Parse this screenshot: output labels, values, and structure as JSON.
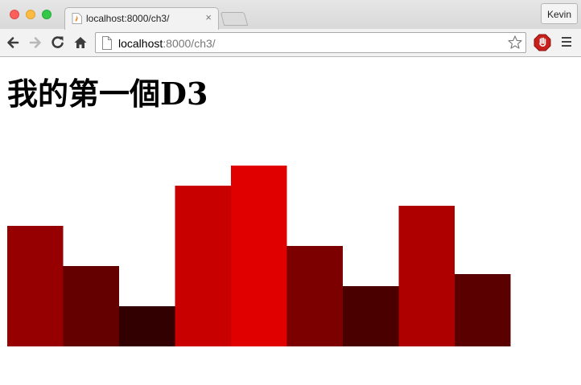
{
  "window": {
    "tab_title": "localhost:8000/ch3/",
    "tab_close_glyph": "×",
    "profile_name": "Kevin"
  },
  "toolbar": {
    "url_host": "localhost",
    "url_rest": ":8000/ch3/",
    "icons": [
      "back-icon",
      "forward-icon",
      "reload-icon",
      "home-icon",
      "page-icon",
      "star-icon",
      "stop-extension-icon",
      "menu-icon"
    ]
  },
  "page": {
    "heading": "我的第一個D3"
  },
  "chart_data": {
    "type": "bar",
    "values": [
      15,
      10,
      5,
      20,
      22.5,
      12.5,
      7.5,
      17.5,
      9
    ],
    "colors": [
      "#960000",
      "#640000",
      "#320000",
      "#c80000",
      "#e10000",
      "#7d0000",
      "#4b0000",
      "#af0000",
      "#5a0000"
    ],
    "ylim": [
      0,
      22.5
    ]
  }
}
